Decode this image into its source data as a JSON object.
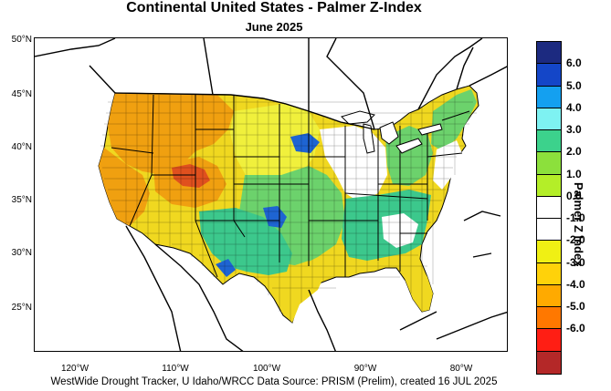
{
  "title": "Continental United States - Palmer Z-Index",
  "subtitle": "June 2025",
  "credit": "WestWide Drought Tracker, U Idaho/WRCC Data Source: PRISM (Prelim), created 16 JUL 2025",
  "lat_labels": [
    "50°N",
    "45°N",
    "40°N",
    "35°N",
    "30°N",
    "25°N"
  ],
  "lon_labels": [
    "120°W",
    "110°W",
    "100°W",
    "90°W",
    "80°W"
  ],
  "colorbar": {
    "title": "Palmer Z Index",
    "labels": [
      "6.0",
      "5.0",
      "4.0",
      "3.0",
      "2.0",
      "1.0",
      "0.0",
      "-1.0",
      "-2.0",
      "-3.0",
      "-4.0",
      "-5.0",
      "-6.0"
    ],
    "colors": [
      "#1c2a80",
      "#1446c8",
      "#14a0f0",
      "#7ef2f2",
      "#3cd28c",
      "#8ce03c",
      "#b4ee28",
      "#ffffff",
      "#ffffff",
      "#f0f014",
      "#ffd20a",
      "#ffaa00",
      "#ff7800",
      "#ff1e14",
      "#b42828"
    ]
  },
  "regions": {
    "colors": {
      "orange": "#f0a010",
      "yellow": "#f0d820",
      "lightyellow": "#f0f03c",
      "green": "#6cd26c",
      "teal": "#3cc88c",
      "blue": "#1e64d2",
      "red": "#e0501e",
      "white": "#ffffff"
    }
  }
}
